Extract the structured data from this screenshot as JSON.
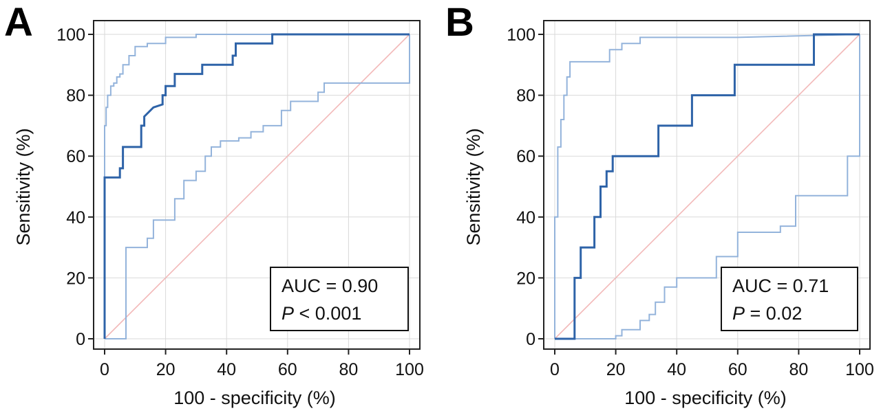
{
  "chart_data": [
    {
      "type": "line",
      "panel_label": "A",
      "xlabel": "100 - specificity (%)",
      "ylabel": "Sensitivity (%)",
      "xlim": [
        0,
        100
      ],
      "ylim": [
        0,
        100
      ],
      "xticks": [
        "0",
        "20",
        "40",
        "60",
        "80",
        "100"
      ],
      "yticks": [
        "0",
        "20",
        "40",
        "60",
        "80",
        "100"
      ],
      "grid": true,
      "annotation": {
        "auc_text": "AUC = 0.90",
        "p_italic": "P",
        "p_rest": " < 0.001"
      },
      "series": [
        {
          "role": "roc",
          "color": "#2e63a8",
          "x": [
            0,
            0,
            0.5,
            0.5,
            2,
            2,
            3.5,
            3.5,
            5,
            5,
            6,
            6,
            8,
            8,
            11,
            11,
            12,
            12,
            13,
            13,
            16,
            16,
            19,
            19,
            20,
            20,
            22,
            22,
            23,
            23,
            28,
            28,
            32,
            32,
            42,
            42,
            43,
            43,
            45,
            45,
            52,
            52,
            55,
            55,
            100
          ],
          "y": [
            0,
            53,
            53,
            53,
            53,
            53,
            53,
            53,
            53,
            56,
            56,
            63,
            63,
            63,
            63,
            63,
            63,
            70,
            70,
            73,
            76,
            76,
            77,
            80,
            80,
            83,
            83,
            83,
            83,
            87,
            87,
            87,
            87,
            90,
            90,
            93,
            93,
            97,
            97,
            97,
            97,
            97,
            97,
            100,
            100
          ]
        },
        {
          "role": "ci-upper",
          "color": "#93b3db",
          "x": [
            0,
            0,
            0.5,
            0.5,
            1,
            1,
            2,
            2,
            3,
            3,
            4,
            4,
            5,
            5,
            6,
            6,
            8,
            8,
            10,
            10,
            14,
            14,
            20,
            20,
            30,
            30,
            50,
            100
          ],
          "y": [
            0,
            70,
            70,
            76,
            76,
            80,
            80,
            83,
            83,
            84,
            84,
            86,
            86,
            87,
            87,
            90,
            90,
            93,
            93,
            96,
            96,
            97,
            97,
            99,
            99,
            100,
            100,
            100
          ]
        },
        {
          "role": "ci-lower",
          "color": "#93b3db",
          "x": [
            0,
            7,
            7,
            14,
            14,
            16,
            16,
            23,
            23,
            26,
            26,
            30,
            30,
            33,
            33,
            35,
            35,
            38,
            38,
            44,
            44,
            48,
            48,
            52,
            52,
            58,
            58,
            61,
            61,
            70,
            70,
            72,
            72,
            100,
            100
          ],
          "y": [
            0,
            0,
            30,
            30,
            33,
            33,
            39,
            39,
            46,
            46,
            52,
            52,
            55,
            55,
            60,
            60,
            63,
            63,
            65,
            65,
            66,
            66,
            68,
            68,
            70,
            70,
            75,
            75,
            78,
            78,
            81,
            81,
            84,
            84,
            100
          ]
        }
      ]
    },
    {
      "type": "line",
      "panel_label": "B",
      "xlabel": "100 - specificity (%)",
      "ylabel": "Sensitivity (%)",
      "xlim": [
        0,
        100
      ],
      "ylim": [
        0,
        100
      ],
      "xticks": [
        "0",
        "20",
        "40",
        "60",
        "80",
        "100"
      ],
      "yticks": [
        "0",
        "20",
        "40",
        "60",
        "80",
        "100"
      ],
      "grid": true,
      "annotation": {
        "auc_text": "AUC = 0.71",
        "p_italic": "P",
        "p_rest": " = 0.02"
      },
      "series": [
        {
          "role": "roc",
          "color": "#2e63a8",
          "x": [
            0,
            6.5,
            6.5,
            8.5,
            8.5,
            13,
            13,
            15,
            15,
            17,
            17,
            19,
            19,
            34,
            34,
            45,
            45,
            59,
            59,
            85,
            85,
            100
          ],
          "y": [
            0,
            0,
            20,
            20,
            30,
            30,
            40,
            40,
            50,
            50,
            55,
            55,
            60,
            60,
            70,
            70,
            80,
            80,
            90,
            90,
            100,
            100
          ]
        },
        {
          "role": "ci-upper",
          "color": "#93b3db",
          "x": [
            0,
            0,
            1,
            1,
            2,
            2,
            3,
            3,
            4,
            4,
            5,
            5,
            7,
            7,
            18,
            18,
            22,
            22,
            28,
            28,
            60,
            100
          ],
          "y": [
            0,
            40,
            40,
            63,
            63,
            72,
            72,
            80,
            80,
            86,
            86,
            91,
            91,
            91,
            91,
            95,
            95,
            97,
            97,
            99,
            99,
            100
          ]
        },
        {
          "role": "ci-lower",
          "color": "#93b3db",
          "x": [
            0,
            20,
            20,
            22,
            22,
            28,
            28,
            31,
            31,
            33,
            33,
            36,
            36,
            40,
            40,
            53,
            53,
            60,
            60,
            74,
            74,
            79,
            79,
            96,
            96,
            100,
            100
          ],
          "y": [
            0,
            0,
            1,
            1,
            3,
            3,
            6,
            6,
            8,
            8,
            12,
            12,
            17,
            17,
            20,
            20,
            27,
            27,
            35,
            35,
            37,
            37,
            47,
            47,
            60,
            60,
            100
          ]
        }
      ]
    }
  ]
}
